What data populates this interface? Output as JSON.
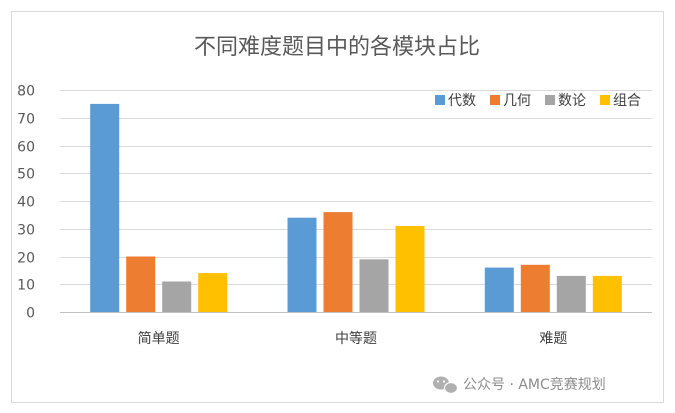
{
  "chart_data": {
    "type": "bar",
    "title": "不同难度题目中的各模块占比",
    "categories": [
      "简单题",
      "中等题",
      "难题"
    ],
    "series": [
      {
        "name": "代数",
        "color": "#5B9BD5",
        "values": [
          75,
          34,
          16
        ]
      },
      {
        "name": "几何",
        "color": "#ED7D31",
        "values": [
          20,
          36,
          17
        ]
      },
      {
        "name": "数论",
        "color": "#A5A5A5",
        "values": [
          11,
          19,
          13
        ]
      },
      {
        "name": "组合",
        "color": "#FFC000",
        "values": [
          14,
          31,
          13
        ]
      }
    ],
    "ylim": [
      0,
      80
    ],
    "yticks": [
      0,
      10,
      20,
      30,
      40,
      50,
      60,
      70,
      80
    ],
    "grid": true,
    "legend": "top-right"
  },
  "watermark": {
    "text": "公众号 · AMC竞赛规划",
    "icon": "wechat-icon"
  }
}
